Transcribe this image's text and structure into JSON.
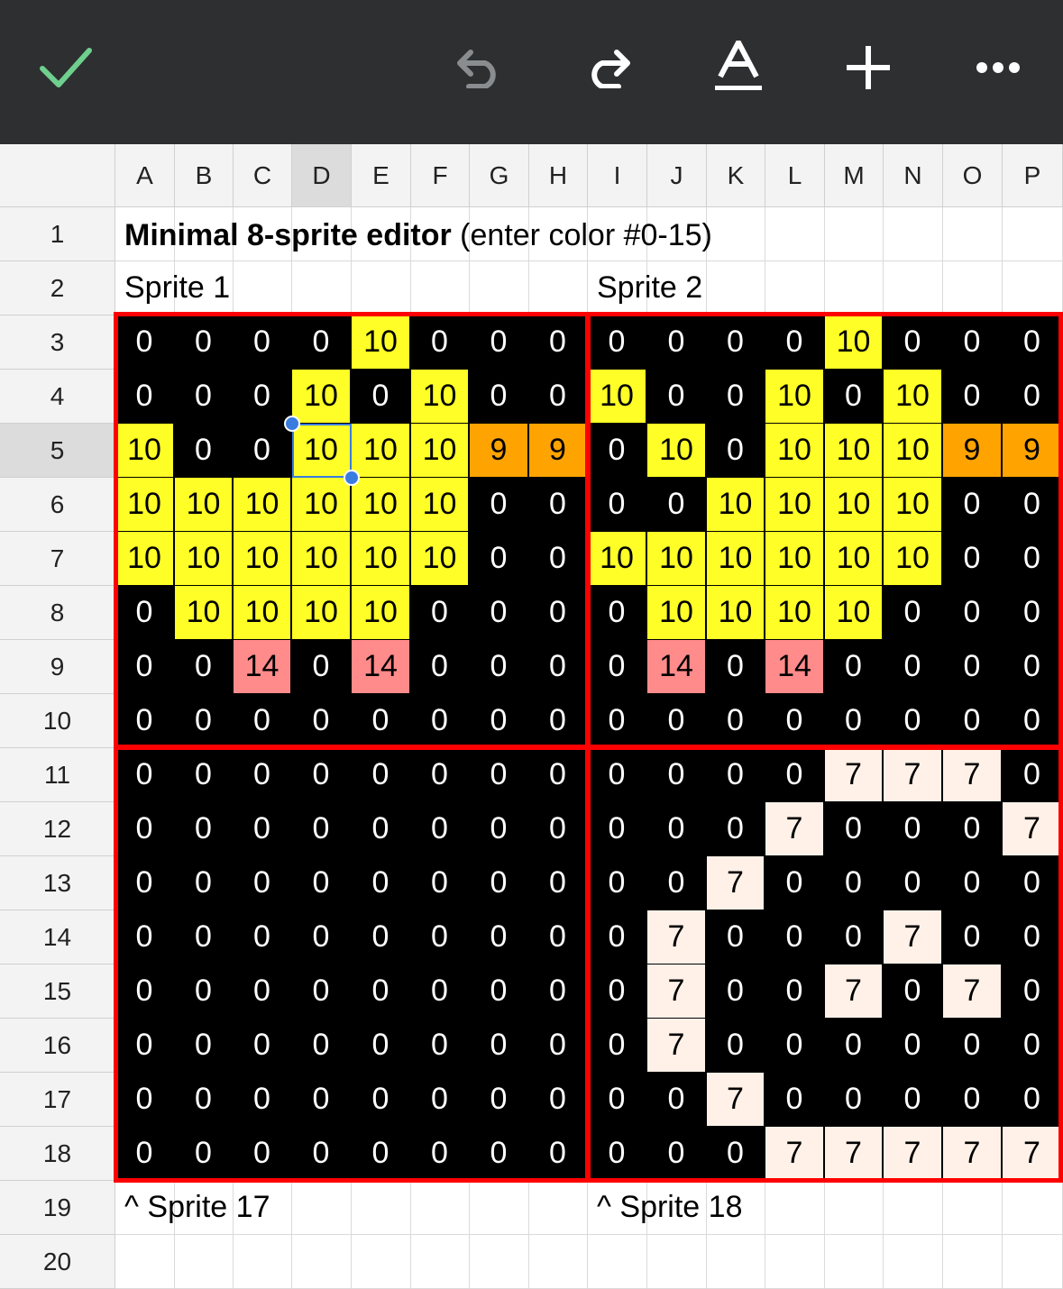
{
  "toolbar": {
    "icons": [
      "check-icon",
      "undo-icon",
      "redo-icon",
      "text-format-icon",
      "add-icon",
      "more-icon"
    ],
    "colors": {
      "background": "#2d2f31",
      "check": "#6fcf8e",
      "undo_disabled": "#8a8d90",
      "icon": "#ffffff"
    }
  },
  "columns": [
    "A",
    "B",
    "C",
    "D",
    "E",
    "F",
    "G",
    "H",
    "I",
    "J",
    "K",
    "L",
    "M",
    "N",
    "O",
    "P"
  ],
  "rows": [
    "1",
    "2",
    "3",
    "4",
    "5",
    "6",
    "7",
    "8",
    "9",
    "10",
    "11",
    "12",
    "13",
    "14",
    "15",
    "16",
    "17",
    "18",
    "19",
    "20"
  ],
  "selected": {
    "column": "D",
    "row": "5"
  },
  "title": {
    "bold": "Minimal 8-sprite editor",
    "rest": " (enter color #0-15)"
  },
  "labels": {
    "sprite1": "Sprite 1",
    "sprite2": "Sprite 2",
    "sprite17": "^ Sprite 17",
    "sprite18": "^ Sprite 18"
  },
  "palette": {
    "0": "#000000",
    "7": "#fff1e8",
    "9": "#ffa300",
    "10": "#ffff27",
    "14": "#ff8b8b"
  },
  "grid": [
    [
      0,
      0,
      0,
      0,
      10,
      0,
      0,
      0,
      0,
      0,
      0,
      0,
      10,
      0,
      0,
      0
    ],
    [
      0,
      0,
      0,
      10,
      0,
      10,
      0,
      0,
      10,
      0,
      0,
      10,
      0,
      10,
      0,
      0
    ],
    [
      10,
      0,
      0,
      10,
      10,
      10,
      9,
      9,
      0,
      10,
      0,
      10,
      10,
      10,
      9,
      9
    ],
    [
      10,
      10,
      10,
      10,
      10,
      10,
      0,
      0,
      0,
      0,
      10,
      10,
      10,
      10,
      0,
      0
    ],
    [
      10,
      10,
      10,
      10,
      10,
      10,
      0,
      0,
      10,
      10,
      10,
      10,
      10,
      10,
      0,
      0
    ],
    [
      0,
      10,
      10,
      10,
      10,
      0,
      0,
      0,
      0,
      10,
      10,
      10,
      10,
      0,
      0,
      0
    ],
    [
      0,
      0,
      14,
      0,
      14,
      0,
      0,
      0,
      0,
      14,
      0,
      14,
      0,
      0,
      0,
      0
    ],
    [
      0,
      0,
      0,
      0,
      0,
      0,
      0,
      0,
      0,
      0,
      0,
      0,
      0,
      0,
      0,
      0
    ],
    [
      0,
      0,
      0,
      0,
      0,
      0,
      0,
      0,
      0,
      0,
      0,
      0,
      7,
      7,
      7,
      0
    ],
    [
      0,
      0,
      0,
      0,
      0,
      0,
      0,
      0,
      0,
      0,
      0,
      7,
      0,
      0,
      0,
      7
    ],
    [
      0,
      0,
      0,
      0,
      0,
      0,
      0,
      0,
      0,
      0,
      7,
      0,
      0,
      0,
      0,
      0
    ],
    [
      0,
      0,
      0,
      0,
      0,
      0,
      0,
      0,
      0,
      7,
      0,
      0,
      0,
      7,
      0,
      0
    ],
    [
      0,
      0,
      0,
      0,
      0,
      0,
      0,
      0,
      0,
      7,
      0,
      0,
      7,
      0,
      7,
      0
    ],
    [
      0,
      0,
      0,
      0,
      0,
      0,
      0,
      0,
      0,
      7,
      0,
      0,
      0,
      0,
      0,
      0
    ],
    [
      0,
      0,
      0,
      0,
      0,
      0,
      0,
      0,
      0,
      0,
      7,
      0,
      0,
      0,
      0,
      0
    ],
    [
      0,
      0,
      0,
      0,
      0,
      0,
      0,
      0,
      0,
      0,
      0,
      7,
      7,
      7,
      7,
      7
    ]
  ]
}
